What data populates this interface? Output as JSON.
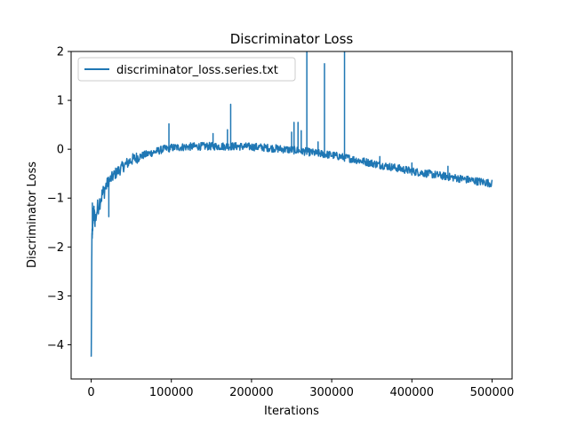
{
  "chart_data": {
    "type": "line",
    "title": "Discriminator Loss",
    "xlabel": "Iterations",
    "ylabel": "Discriminator Loss",
    "xlim": [
      -25000,
      525000
    ],
    "ylim": [
      -4.7,
      2.0
    ],
    "xticks": [
      0,
      100000,
      200000,
      300000,
      400000,
      500000
    ],
    "xtick_labels": [
      "0",
      "100000",
      "200000",
      "300000",
      "400000",
      "500000"
    ],
    "yticks": [
      -4,
      -3,
      -2,
      -1,
      0,
      1,
      2
    ],
    "ytick_labels": [
      "−4",
      "−3",
      "−2",
      "−1",
      "0",
      "1",
      "2"
    ],
    "grid": false,
    "legend_position": "top-left",
    "series_color": "#1f77b4",
    "series": [
      {
        "name": "discriminator_loss.series.txt",
        "base": [
          [
            0,
            -4.3
          ],
          [
            300,
            -3.8
          ],
          [
            600,
            -2.6
          ],
          [
            1000,
            -1.8
          ],
          [
            2000,
            -1.5
          ],
          [
            3000,
            -1.3
          ],
          [
            5000,
            -1.45
          ],
          [
            8000,
            -1.2
          ],
          [
            12000,
            -1.0
          ],
          [
            16000,
            -0.85
          ],
          [
            20000,
            -0.7
          ],
          [
            25000,
            -0.6
          ],
          [
            30000,
            -0.5
          ],
          [
            40000,
            -0.35
          ],
          [
            50000,
            -0.22
          ],
          [
            60000,
            -0.15
          ],
          [
            70000,
            -0.1
          ],
          [
            80000,
            -0.05
          ],
          [
            90000,
            0.0
          ],
          [
            100000,
            0.03
          ],
          [
            120000,
            0.05
          ],
          [
            140000,
            0.06
          ],
          [
            160000,
            0.06
          ],
          [
            180000,
            0.06
          ],
          [
            200000,
            0.05
          ],
          [
            220000,
            0.03
          ],
          [
            240000,
            0.0
          ],
          [
            260000,
            -0.03
          ],
          [
            280000,
            -0.08
          ],
          [
            300000,
            -0.12
          ],
          [
            320000,
            -0.18
          ],
          [
            340000,
            -0.25
          ],
          [
            360000,
            -0.32
          ],
          [
            380000,
            -0.38
          ],
          [
            400000,
            -0.45
          ],
          [
            420000,
            -0.5
          ],
          [
            440000,
            -0.55
          ],
          [
            460000,
            -0.6
          ],
          [
            480000,
            -0.65
          ],
          [
            500000,
            -0.7
          ]
        ],
        "spikes": [
          [
            1500,
            -1.1
          ],
          [
            22000,
            -1.38
          ],
          [
            97000,
            0.52
          ],
          [
            152000,
            0.32
          ],
          [
            170000,
            0.4
          ],
          [
            174000,
            0.92
          ],
          [
            250000,
            0.35
          ],
          [
            253000,
            0.55
          ],
          [
            258000,
            0.55
          ],
          [
            262000,
            0.38
          ],
          [
            269000,
            2.0
          ],
          [
            283000,
            0.15
          ],
          [
            291000,
            1.75
          ],
          [
            316000,
            2.0
          ],
          [
            360000,
            -0.15
          ],
          [
            400000,
            -0.28
          ],
          [
            445000,
            -0.35
          ]
        ]
      }
    ]
  }
}
